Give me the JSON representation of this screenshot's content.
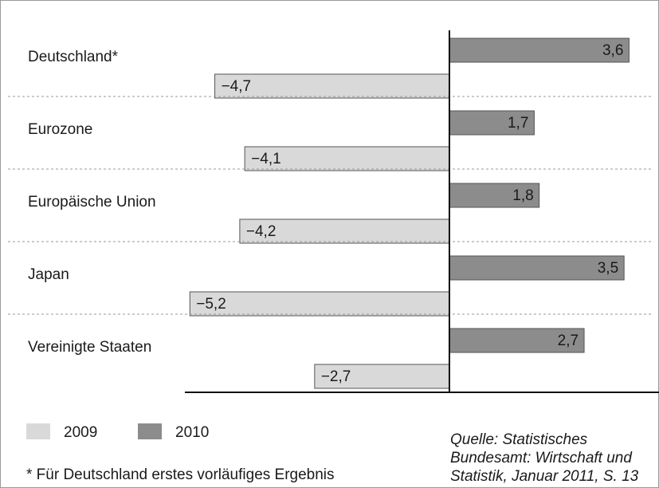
{
  "chart_data": {
    "type": "hbar",
    "categories": [
      "Deutschland*",
      "Eurozone",
      "Europäische Union",
      "Japan",
      "Vereinigte Staaten"
    ],
    "series": [
      {
        "name": "2009",
        "color": "#d9d9d9",
        "values": [
          -4.7,
          -4.1,
          -4.2,
          -5.2,
          -2.7
        ],
        "value_labels": [
          "−4,7",
          "−4,1",
          "−4,2",
          "−5,2",
          "−2,7"
        ]
      },
      {
        "name": "2010",
        "color": "#8c8c8c",
        "values": [
          3.6,
          1.7,
          1.8,
          3.5,
          2.7
        ],
        "value_labels": [
          "3,6",
          "1,7",
          "1,8",
          "3,5",
          "2,7"
        ]
      }
    ],
    "xlim": [
      -5.3,
      4.2
    ],
    "footnote": "* Für Deutschland erstes vorläufiges Ergebnis",
    "source": [
      "Quelle: Statistisches",
      "Bundesamt: Wirtschaft und",
      "Statistik, Januar 2011, S. 13"
    ]
  }
}
